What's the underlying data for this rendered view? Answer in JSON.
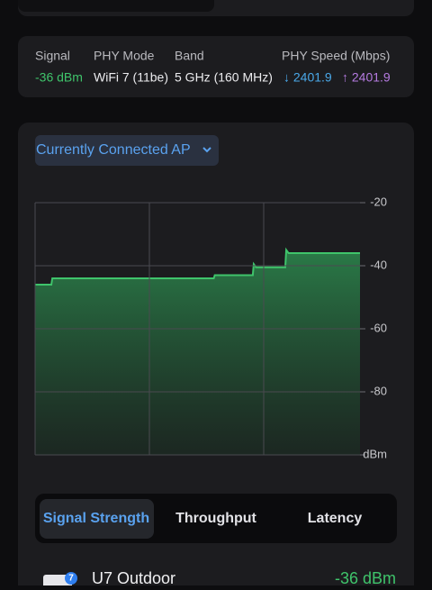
{
  "info": {
    "headers": [
      "Signal",
      "PHY Mode",
      "Band",
      "PHY Speed (Mbps)"
    ],
    "signal": "-36 dBm",
    "phy_mode": "WiFi 7 (11be)",
    "band": "5 GHz (160 MHz)",
    "speed_down": "↓ 2401.9",
    "speed_up": "↑ 2401.9"
  },
  "dropdown": "Currently Connected AP",
  "chart_data": {
    "type": "area",
    "color": "#3fc46b",
    "x": [
      0,
      5,
      5.3,
      55,
      55.3,
      67,
      67.3,
      68,
      77,
      77.3,
      78,
      100
    ],
    "values": [
      -46,
      -46,
      -44,
      -44,
      -43,
      -43,
      -39.5,
      -40.5,
      -40.5,
      -35,
      -36,
      -36
    ],
    "xlim": [
      0,
      100
    ],
    "ylim": [
      -100,
      -20
    ],
    "yticks": [
      -20,
      -40,
      -60,
      -80,
      {
        "value": -100,
        "label": "dBm"
      }
    ],
    "grid": true
  },
  "tabs": [
    "Signal Strength",
    "Throughput",
    "Latency"
  ],
  "device": {
    "badge": "7",
    "name": "U7 Outdoor",
    "signal": "-36 dBm"
  }
}
